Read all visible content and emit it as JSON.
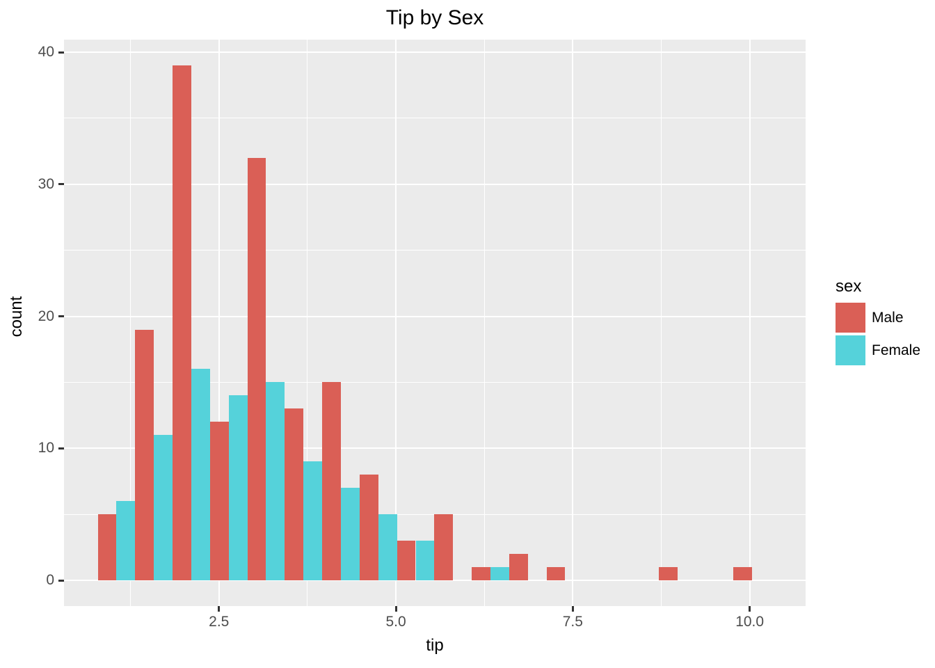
{
  "title": "Tip by Sex",
  "axes": {
    "x_label": "tip",
    "y_label": "count"
  },
  "legend": {
    "title": "sex",
    "entries": [
      {
        "label": "Male",
        "color": "#DA5F56"
      },
      {
        "label": "Female",
        "color": "#55D2DA"
      }
    ]
  },
  "colors": {
    "figure_background": "#FFFFFF",
    "panel_background": "#EBEBEB",
    "gridline": "#FFFFFF",
    "tick_mark": "#333333",
    "tick_label": "#4D4D4D",
    "title_text": "#000000"
  },
  "chart_data": {
    "type": "bar",
    "subtype": "dodged_histogram",
    "title": "Tip by Sex",
    "xlabel": "tip",
    "ylabel": "count",
    "xlim": [
      0.31,
      10.79
    ],
    "ylim": [
      -1.95,
      40.95
    ],
    "grid": true,
    "legend_position": "right",
    "x_major_ticks": [
      2.5,
      5.0,
      7.5,
      10.0
    ],
    "x_tick_labels": [
      "2.5",
      "5.0",
      "7.5",
      "10.0"
    ],
    "x_minor_ticks": [
      1.25,
      3.75,
      6.25,
      8.75
    ],
    "y_major_ticks": [
      0,
      10,
      20,
      30,
      40
    ],
    "y_tick_labels": [
      "0",
      "10",
      "20",
      "30",
      "40"
    ],
    "y_minor_ticks": [
      5,
      15,
      25,
      35
    ],
    "bin_start": 0.787,
    "binwidth": 0.5285,
    "bin_centers": [
      1.05,
      1.58,
      2.11,
      2.64,
      3.17,
      3.69,
      4.22,
      4.75,
      5.28,
      5.81,
      6.34,
      6.86,
      7.39,
      7.92,
      8.45,
      8.98,
      9.51,
      10.04
    ],
    "series": [
      {
        "name": "Male",
        "color": "#DA5F56",
        "counts": [
          5,
          19,
          39,
          12,
          32,
          13,
          15,
          8,
          3,
          5,
          1,
          2,
          1,
          0,
          0,
          1,
          0,
          1
        ]
      },
      {
        "name": "Female",
        "color": "#55D2DA",
        "counts": [
          6,
          11,
          16,
          14,
          15,
          9,
          7,
          5,
          3,
          0,
          1,
          0,
          0,
          0,
          0,
          0,
          0,
          0
        ]
      }
    ]
  }
}
